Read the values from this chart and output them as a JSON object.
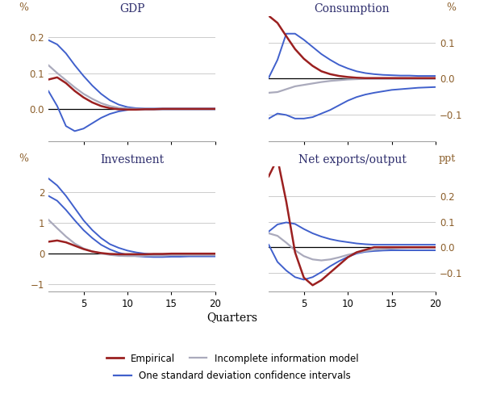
{
  "quarters": [
    1,
    2,
    3,
    4,
    5,
    6,
    7,
    8,
    9,
    10,
    11,
    12,
    13,
    14,
    15,
    16,
    17,
    18,
    19,
    20
  ],
  "gdp": {
    "empirical": [
      0.082,
      0.088,
      0.072,
      0.05,
      0.032,
      0.018,
      0.008,
      0.002,
      -0.001,
      -0.002,
      -0.002,
      -0.001,
      -0.001,
      0.0,
      0.0,
      0.0,
      0.0,
      0.0,
      0.0,
      0.0
    ],
    "model": [
      0.122,
      0.1,
      0.08,
      0.06,
      0.042,
      0.028,
      0.016,
      0.008,
      0.003,
      0.001,
      0.0,
      0.0,
      0.0,
      0.0,
      0.0,
      0.0,
      0.0,
      0.0,
      0.0,
      0.0
    ],
    "ci_upper": [
      0.192,
      0.18,
      0.155,
      0.122,
      0.092,
      0.065,
      0.042,
      0.024,
      0.012,
      0.005,
      0.002,
      0.001,
      0.001,
      0.001,
      0.001,
      0.001,
      0.001,
      0.001,
      0.001,
      0.001
    ],
    "ci_lower": [
      0.05,
      0.008,
      -0.048,
      -0.062,
      -0.055,
      -0.04,
      -0.025,
      -0.014,
      -0.007,
      -0.003,
      -0.001,
      -0.001,
      -0.001,
      -0.001,
      -0.001,
      -0.001,
      -0.001,
      -0.001,
      -0.001,
      -0.001
    ],
    "yticks": [
      0.0,
      0.1,
      0.2
    ],
    "ylim": [
      -0.09,
      0.26
    ],
    "ylabel_left": "%",
    "title": "GDP"
  },
  "consumption": {
    "empirical": [
      0.175,
      0.155,
      0.118,
      0.082,
      0.055,
      0.035,
      0.02,
      0.012,
      0.007,
      0.004,
      0.002,
      0.001,
      0.001,
      0.001,
      0.001,
      0.001,
      0.001,
      0.001,
      0.001,
      0.001
    ],
    "model": [
      -0.04,
      -0.038,
      -0.03,
      -0.022,
      -0.018,
      -0.014,
      -0.01,
      -0.007,
      -0.005,
      -0.003,
      -0.002,
      -0.001,
      -0.001,
      -0.001,
      -0.001,
      -0.001,
      -0.001,
      -0.001,
      -0.001,
      -0.001
    ],
    "ci_upper": [
      0.002,
      0.052,
      0.125,
      0.125,
      0.108,
      0.088,
      0.068,
      0.052,
      0.038,
      0.028,
      0.02,
      0.015,
      0.012,
      0.01,
      0.009,
      0.008,
      0.008,
      0.007,
      0.007,
      0.007
    ],
    "ci_lower": [
      -0.112,
      -0.098,
      -0.102,
      -0.112,
      -0.112,
      -0.108,
      -0.098,
      -0.088,
      -0.075,
      -0.062,
      -0.052,
      -0.045,
      -0.04,
      -0.036,
      -0.032,
      -0.03,
      -0.028,
      -0.026,
      -0.025,
      -0.024
    ],
    "yticks": [
      -0.1,
      0.0,
      0.1
    ],
    "ylim": [
      -0.175,
      0.175
    ],
    "ylabel_right": "%",
    "title": "Consumption"
  },
  "investment": {
    "empirical": [
      0.38,
      0.42,
      0.36,
      0.25,
      0.14,
      0.06,
      0.01,
      -0.02,
      -0.03,
      -0.03,
      -0.03,
      -0.03,
      -0.02,
      -0.02,
      -0.01,
      -0.01,
      -0.01,
      -0.01,
      -0.01,
      -0.01
    ],
    "model": [
      1.1,
      0.82,
      0.55,
      0.32,
      0.16,
      0.06,
      0.0,
      -0.05,
      -0.08,
      -0.09,
      -0.09,
      -0.08,
      -0.07,
      -0.07,
      -0.06,
      -0.06,
      -0.06,
      -0.06,
      -0.06,
      -0.06
    ],
    "ci_upper": [
      1.88,
      1.72,
      1.42,
      1.08,
      0.76,
      0.5,
      0.28,
      0.13,
      0.02,
      -0.05,
      -0.09,
      -0.11,
      -0.12,
      -0.12,
      -0.11,
      -0.11,
      -0.1,
      -0.1,
      -0.1,
      -0.1
    ],
    "ci_lower": [
      2.45,
      2.22,
      1.88,
      1.48,
      1.08,
      0.76,
      0.5,
      0.3,
      0.18,
      0.09,
      0.03,
      -0.01,
      -0.04,
      -0.06,
      -0.07,
      -0.07,
      -0.07,
      -0.08,
      -0.08,
      -0.08
    ],
    "yticks": [
      -1,
      0,
      1,
      2
    ],
    "ylim": [
      -1.25,
      2.85
    ],
    "ylabel_left": "%",
    "title": "Investment"
  },
  "netexports": {
    "empirical": [
      0.28,
      0.35,
      0.18,
      -0.02,
      -0.12,
      -0.15,
      -0.13,
      -0.1,
      -0.07,
      -0.04,
      -0.02,
      -0.01,
      0.0,
      0.0,
      0.0,
      0.0,
      0.0,
      0.0,
      0.0,
      0.0
    ],
    "model": [
      0.055,
      0.045,
      0.018,
      -0.012,
      -0.035,
      -0.048,
      -0.052,
      -0.048,
      -0.04,
      -0.03,
      -0.022,
      -0.015,
      -0.01,
      -0.007,
      -0.005,
      -0.003,
      -0.002,
      -0.002,
      -0.001,
      -0.001
    ],
    "ci_upper": [
      0.062,
      0.09,
      0.098,
      0.092,
      0.072,
      0.055,
      0.042,
      0.032,
      0.025,
      0.02,
      0.015,
      0.012,
      0.01,
      0.01,
      0.01,
      0.01,
      0.01,
      0.01,
      0.01,
      0.01
    ],
    "ci_lower": [
      0.01,
      -0.058,
      -0.092,
      -0.118,
      -0.128,
      -0.118,
      -0.098,
      -0.075,
      -0.055,
      -0.038,
      -0.025,
      -0.018,
      -0.015,
      -0.013,
      -0.012,
      -0.012,
      -0.012,
      -0.012,
      -0.012,
      -0.012
    ],
    "yticks": [
      -0.1,
      0.0,
      0.1,
      0.2
    ],
    "ylim": [
      -0.175,
      0.32
    ],
    "ylabel_right": "ppt",
    "title": "Net exports/output"
  },
  "colors": {
    "empirical": "#9B2020",
    "model": "#AAAABC",
    "ci": "#4060CC",
    "zero_line": "#000000",
    "grid": "#CCCCCC",
    "tick_label": "#8B5E2A",
    "title_color": "#2B2B6B"
  },
  "xlabel": "Quarters",
  "legend": {
    "empirical_label": "Empirical",
    "model_label": "Incomplete information model",
    "ci_label": "One standard deviation confidence intervals"
  }
}
